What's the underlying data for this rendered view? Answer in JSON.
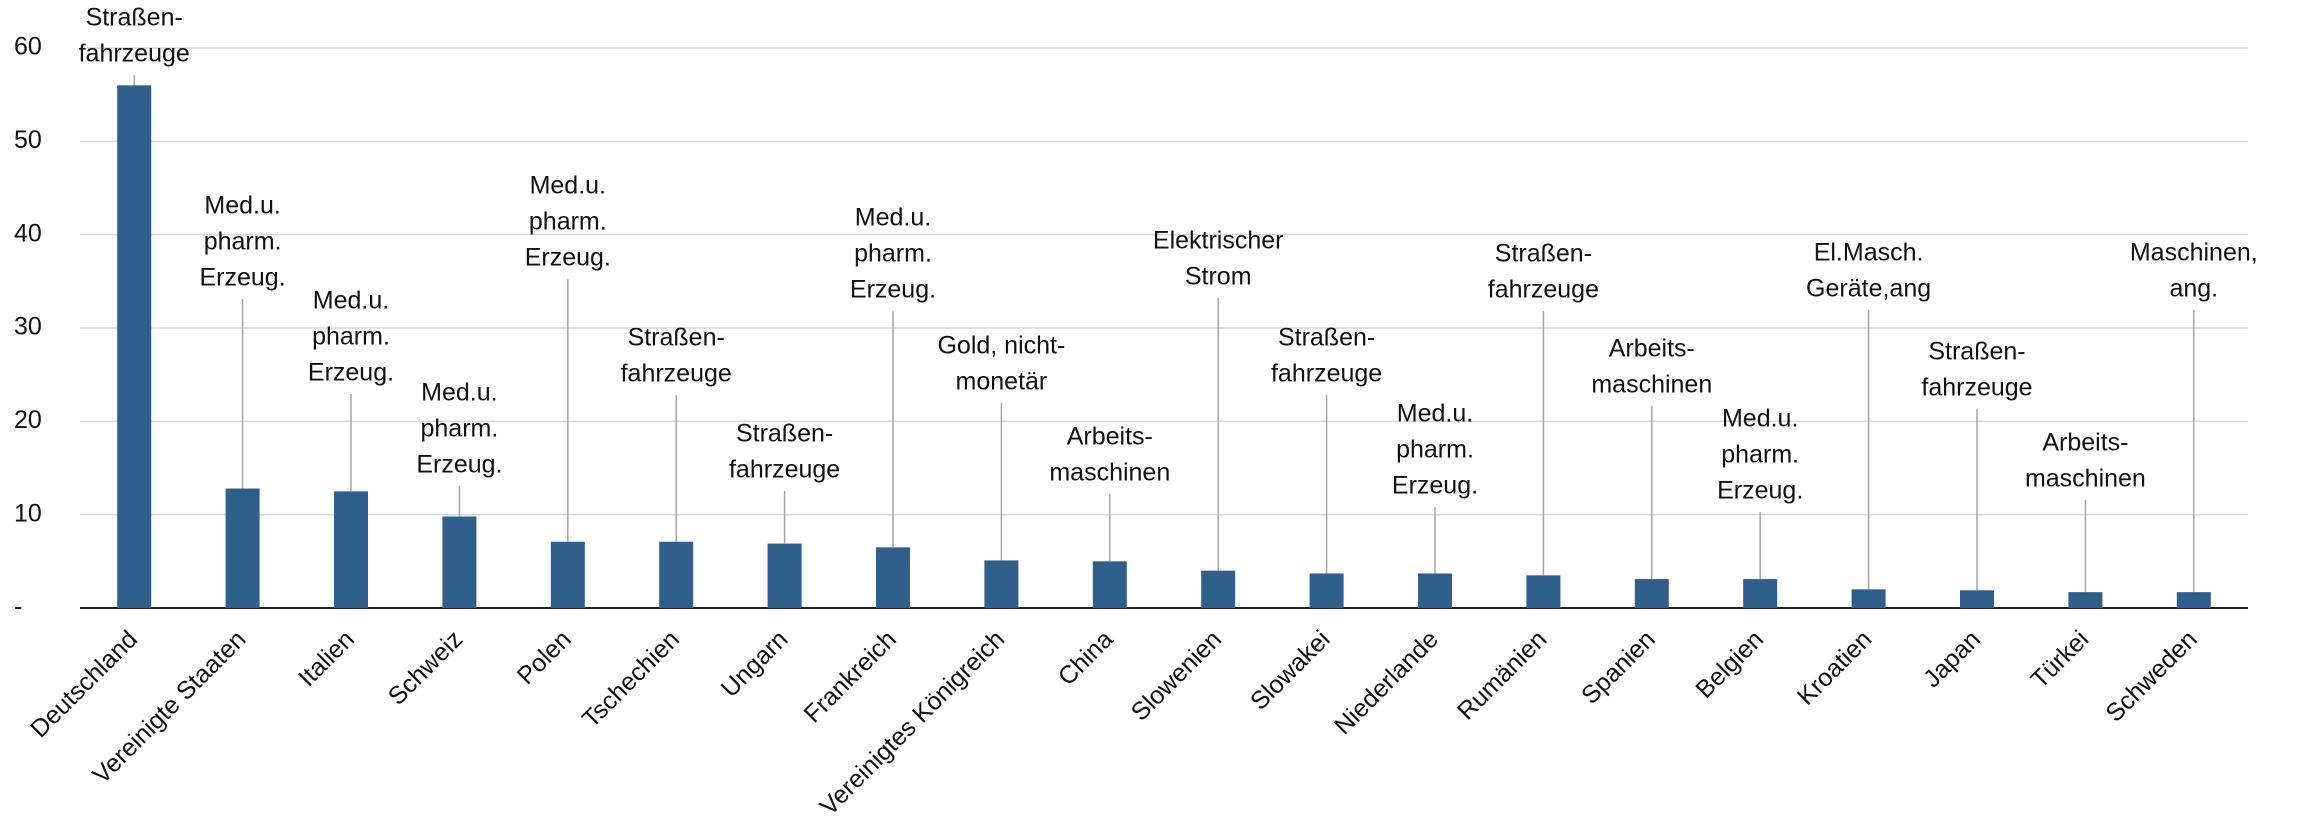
{
  "chart_data": {
    "type": "bar",
    "categories": [
      "Deutschland",
      "Vereinigte Staaten",
      "Italien",
      "Schweiz",
      "Polen",
      "Tschechien",
      "Ungarn",
      "Frankreich",
      "Vereinigtes Königreich",
      "China",
      "Slowenien",
      "Slowakei",
      "Niederlande",
      "Rumänien",
      "Spanien",
      "Belgien",
      "Kroatien",
      "Japan",
      "Türkei",
      "Schweden"
    ],
    "values": [
      56,
      12.8,
      12.5,
      9.8,
      7.1,
      7.1,
      6.9,
      6.5,
      5.1,
      5.0,
      4.0,
      3.7,
      3.7,
      3.5,
      3.1,
      3.1,
      2.0,
      1.9,
      1.7,
      1.7
    ],
    "annotations": [
      [
        "Straßen-",
        "fahrzeuge"
      ],
      [
        "Med.u.",
        "pharm.",
        "Erzeug."
      ],
      [
        "Med.u.",
        "pharm.",
        "Erzeug."
      ],
      [
        "Med.u.",
        "pharm.",
        "Erzeug."
      ],
      [
        "Med.u.",
        "pharm.",
        "Erzeug."
      ],
      [
        "Straßen-",
        "fahrzeuge"
      ],
      [
        "Straßen-",
        "fahrzeuge"
      ],
      [
        "Med.u.",
        "pharm.",
        "Erzeug."
      ],
      [
        "Gold, nicht-",
        "monetär"
      ],
      [
        "Arbeits-",
        "maschinen"
      ],
      [
        "Elektrischer",
        "Strom"
      ],
      [
        "Straßen-",
        "fahrzeuge"
      ],
      [
        "Med.u.",
        "pharm.",
        "Erzeug."
      ],
      [
        "Straßen-",
        "fahrzeuge"
      ],
      [
        "Arbeits-",
        "maschinen"
      ],
      [
        "Med.u.",
        "pharm.",
        "Erzeug."
      ],
      [
        "El.Masch.",
        "Geräte,ang"
      ],
      [
        "Straßen-",
        "fahrzeuge"
      ],
      [
        "Arbeits-",
        "maschinen"
      ],
      [
        "Maschinen,",
        "ang."
      ]
    ],
    "color": "#2f5f8a",
    "ylim": [
      0,
      60
    ],
    "yticks": [
      {
        "value": 0,
        "label": "-"
      },
      10,
      20,
      30,
      40,
      50,
      60
    ],
    "grid": true
  }
}
